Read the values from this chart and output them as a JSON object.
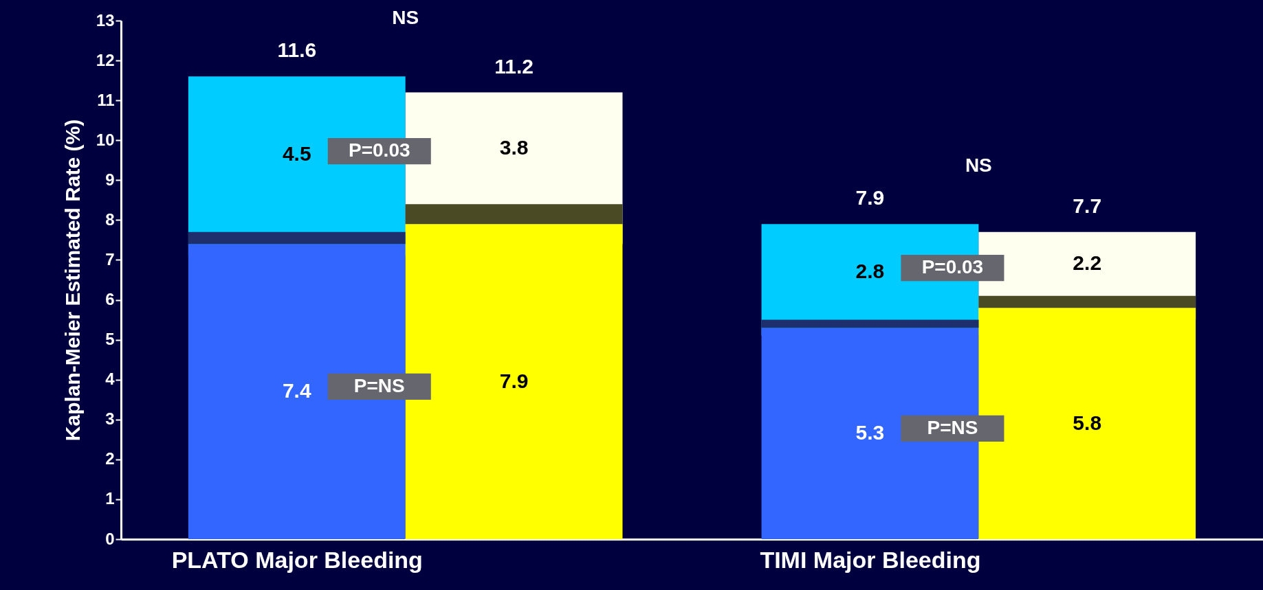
{
  "chart_data": {
    "type": "bar",
    "ylabel": "Kaplan-Meier Estimated Rate (%)",
    "categories": [
      "PLATO Major Bleeding",
      null,
      "TIMI Major Bleeding",
      null
    ],
    "series": [
      {
        "colors": [
          "#00ccff",
          "#fffff0",
          "#00ccff",
          "#fffff0"
        ],
        "base": [
          7.1,
          7.4,
          5.1,
          5.5
        ],
        "values": [
          4.5,
          3.8,
          2.8,
          2.2
        ],
        "value_labels": [
          "4.5",
          "3.8",
          "2.8",
          "2.2"
        ]
      },
      {
        "colors": [
          "#3366ff",
          "#ffff00",
          "#3366ff",
          "#ffff00"
        ],
        "base": [
          0,
          0,
          0,
          0
        ],
        "values": [
          7.4,
          7.9,
          5.3,
          5.8
        ],
        "value_labels": [
          "7.4",
          "7.9",
          "5.3",
          "5.8"
        ]
      },
      {
        "colors": [
          "#1f2f6e",
          "#4a4a24",
          "#1f2f6e",
          "#4a4a24"
        ],
        "base": [
          7.4,
          7.9,
          5.3,
          5.8
        ],
        "values": [
          0.3,
          0.5,
          0.2,
          0.3
        ]
      }
    ],
    "annotations": [
      "NS",
      "11.6",
      "11.2",
      "P=0.03",
      "P=NS",
      "NS",
      "7.9",
      "7.7",
      "P=0.03",
      "P=NS"
    ],
    "ylim": [
      0,
      13
    ],
    "yticks": [
      0,
      1,
      2,
      3,
      4,
      5,
      6,
      7,
      8,
      9,
      10,
      11,
      12,
      13
    ],
    "grid": false
  }
}
